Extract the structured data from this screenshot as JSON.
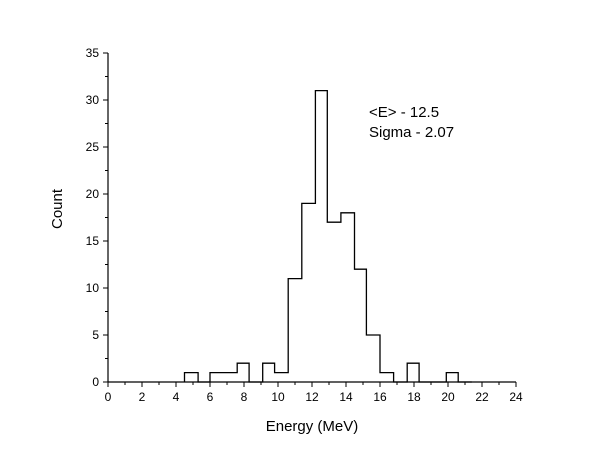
{
  "chart_data": {
    "type": "histogram",
    "xlabel": "Energy (MeV)",
    "ylabel": "Count",
    "xlim": [
      0,
      24
    ],
    "ylim": [
      0,
      35
    ],
    "x_ticks": [
      "0",
      "2",
      "4",
      "6",
      "8",
      "10",
      "12",
      "14",
      "16",
      "18",
      "20",
      "22",
      "24"
    ],
    "y_ticks": [
      "0",
      "5",
      "10",
      "15",
      "20",
      "25",
      "30",
      "35"
    ],
    "bin_edges": [
      4.5,
      5.3,
      6.0,
      6.8,
      7.6,
      8.3,
      9.1,
      9.8,
      10.6,
      11.4,
      12.2,
      12.9,
      13.7,
      14.5,
      15.2,
      16.0,
      16.8,
      17.6,
      18.3,
      19.1,
      19.9,
      20.6,
      21.4
    ],
    "counts": [
      1,
      0,
      1,
      1,
      2,
      0,
      2,
      1,
      11,
      19,
      31,
      17,
      18,
      12,
      5,
      1,
      0,
      2,
      0,
      0,
      1,
      0
    ],
    "annotations": [
      "<E> - 12.5",
      "Sigma - 2.07"
    ],
    "grid": false,
    "legend": "none"
  }
}
